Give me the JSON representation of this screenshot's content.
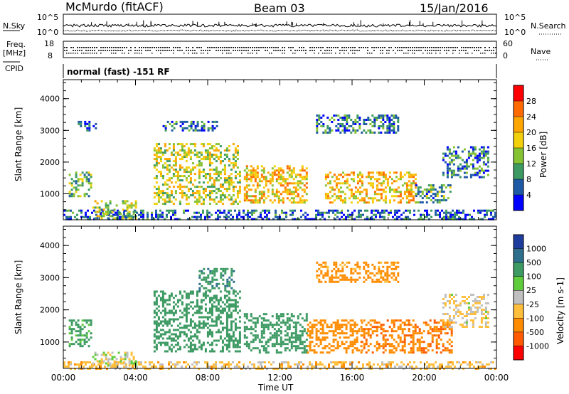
{
  "header": {
    "station": "McMurdo (fitACF)",
    "beam": "Beam 03",
    "date": "15/Jan/2016"
  },
  "top_panels": {
    "nsky_label": "N.Sky",
    "nsky_ticks": [
      "10^5",
      "10^0"
    ],
    "nsearch_label": "N.Search",
    "nsearch_ticks": [
      "10^5",
      "10^0"
    ],
    "freq_label_1": "Freq.",
    "freq_label_2": "[MHz]",
    "freq_ticks": [
      "18",
      "8"
    ],
    "nave_label": "Nave",
    "nave_ticks": [
      "60",
      "0"
    ],
    "cpid_label": "CPID",
    "cpid_text": "normal (fast) -151 RF"
  },
  "chart_data": [
    {
      "type": "heatmap",
      "name": "power",
      "ylabel": "Slant Range [km]",
      "ylim": [
        180,
        4600
      ],
      "yticks": [
        "4000",
        "3000",
        "2000",
        "1000"
      ],
      "xlim": [
        0,
        24
      ],
      "colorbar_label": "Power [dB]",
      "colorbar_ticks": [
        "28",
        "24",
        "20",
        "16",
        "12",
        "8",
        "4"
      ],
      "colorbar_colors": [
        "#ff0000",
        "#ff6a00",
        "#ffa500",
        "#f2d10c",
        "#86c332",
        "#3c9a62",
        "#1e5aa5",
        "#0000ff"
      ],
      "echo_regions": [
        {
          "t": [
            0.3,
            1.6
          ],
          "r": [
            900,
            1700
          ],
          "power": 12
        },
        {
          "t": [
            0.0,
            24.0
          ],
          "r": [
            180,
            500
          ],
          "power": 6
        },
        {
          "t": [
            1.6,
            4.0
          ],
          "r": [
            200,
            800
          ],
          "power": 14
        },
        {
          "t": [
            5.0,
            9.8
          ],
          "r": [
            700,
            2600
          ],
          "power": 16
        },
        {
          "t": [
            10.0,
            13.5
          ],
          "r": [
            700,
            1900
          ],
          "power": 20
        },
        {
          "t": [
            14.5,
            19.5
          ],
          "r": [
            700,
            1700
          ],
          "power": 20
        },
        {
          "t": [
            19.5,
            21.5
          ],
          "r": [
            700,
            1300
          ],
          "power": 10
        },
        {
          "t": [
            21.0,
            23.5
          ],
          "r": [
            1500,
            2500
          ],
          "power": 8
        },
        {
          "t": [
            14.0,
            18.5
          ],
          "r": [
            2900,
            3500
          ],
          "power": 8
        },
        {
          "t": [
            0.8,
            1.8
          ],
          "r": [
            3000,
            3300
          ],
          "power": 6
        },
        {
          "t": [
            5.5,
            8.5
          ],
          "r": [
            3000,
            3300
          ],
          "power": 8
        }
      ]
    },
    {
      "type": "heatmap",
      "name": "velocity",
      "ylabel": "Slant Range [km]",
      "ylim": [
        180,
        4600
      ],
      "yticks": [
        "4000",
        "3000",
        "2000",
        "1000"
      ],
      "xlim": [
        0,
        24
      ],
      "xlabel": "Time UT",
      "xticks": [
        "00:00",
        "04:00",
        "08:00",
        "12:00",
        "16:00",
        "20:00",
        "00:00"
      ],
      "colorbar_label": "Velocity [m s-1]",
      "colorbar_ticks": [
        "1000",
        "500",
        "100",
        "25",
        "-25",
        "-100",
        "-500",
        "-1000"
      ],
      "colorbar_colors": [
        "#1e3c9c",
        "#2d6f8c",
        "#3c9a62",
        "#5fcc3c",
        "#c0c0c0",
        "#ffbf3c",
        "#ff8c00",
        "#ff5a00",
        "#ff0000"
      ],
      "echo_regions": [
        {
          "t": [
            0.3,
            1.6
          ],
          "r": [
            900,
            1700
          ],
          "velocity": 150
        },
        {
          "t": [
            0.0,
            24.0
          ],
          "r": [
            180,
            400
          ],
          "velocity": -60
        },
        {
          "t": [
            1.6,
            4.0
          ],
          "r": [
            300,
            700
          ],
          "velocity": 0
        },
        {
          "t": [
            5.0,
            9.8
          ],
          "r": [
            700,
            2600
          ],
          "velocity": 300
        },
        {
          "t": [
            10.0,
            13.5
          ],
          "r": [
            700,
            1900
          ],
          "velocity": 300
        },
        {
          "t": [
            13.5,
            16.5
          ],
          "r": [
            700,
            1700
          ],
          "velocity": -300
        },
        {
          "t": [
            16.5,
            21.5
          ],
          "r": [
            700,
            1700
          ],
          "velocity": -400
        },
        {
          "t": [
            21.0,
            23.5
          ],
          "r": [
            1500,
            2500
          ],
          "velocity": -30
        },
        {
          "t": [
            14.0,
            18.5
          ],
          "r": [
            2900,
            3500
          ],
          "velocity": -200
        },
        {
          "t": [
            7.5,
            9.5
          ],
          "r": [
            2600,
            3300
          ],
          "velocity": 400
        }
      ]
    }
  ]
}
